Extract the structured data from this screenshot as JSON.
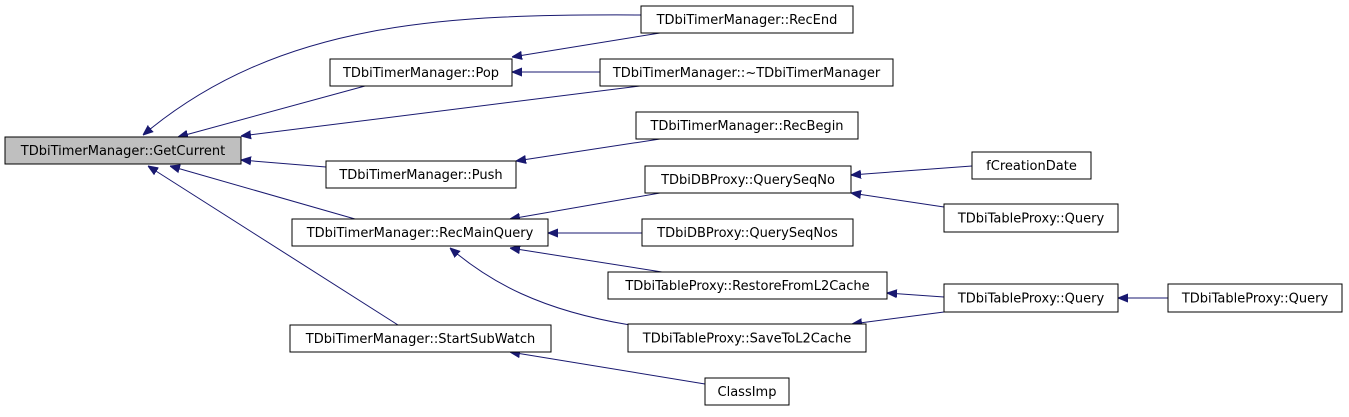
{
  "nodes": [
    {
      "label": "TDbiTimerManager::GetCurrent"
    },
    {
      "label": "TDbiTimerManager::Pop"
    },
    {
      "label": "TDbiTimerManager::RecEnd"
    },
    {
      "label": "TDbiTimerManager::~TDbiTimerManager"
    },
    {
      "label": "TDbiTimerManager::RecBegin"
    },
    {
      "label": "TDbiTimerManager::Push"
    },
    {
      "label": "TDbiDBProxy::QuerySeqNo"
    },
    {
      "label": "fCreationDate"
    },
    {
      "label": "TDbiTimerManager::RecMainQuery"
    },
    {
      "label": "TDbiTableProxy::Query"
    },
    {
      "label": "TDbiDBProxy::QuerySeqNos"
    },
    {
      "label": "TDbiTableProxy::RestoreFromL2Cache"
    },
    {
      "label": "TDbiTableProxy::Query"
    },
    {
      "label": "TDbiTableProxy::Query"
    },
    {
      "label": "TDbiTableProxy::SaveToL2Cache"
    },
    {
      "label": "TDbiTimerManager::StartSubWatch"
    },
    {
      "label": "ClassImp"
    }
  ]
}
